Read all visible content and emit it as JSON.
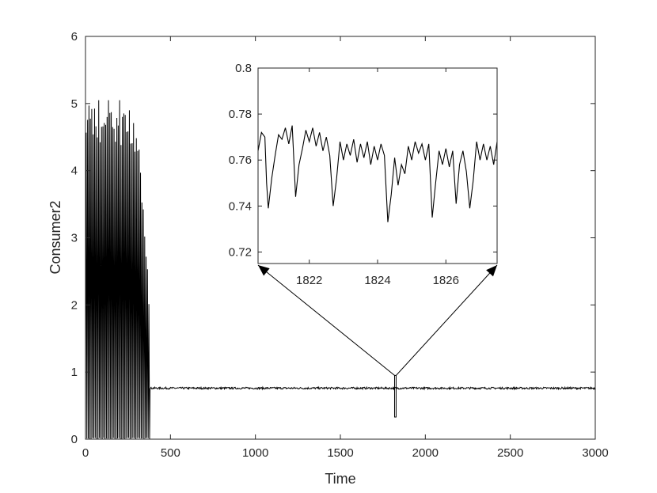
{
  "chart_data": [
    {
      "type": "line",
      "role": "main",
      "xlabel": "Time",
      "ylabel": "Consumer2",
      "xlim": [
        0,
        3000
      ],
      "ylim": [
        0,
        6
      ],
      "xticks": [
        0,
        500,
        1000,
        1500,
        2000,
        2500,
        3000
      ],
      "yticks": [
        0,
        1,
        2,
        3,
        4,
        5,
        6
      ],
      "xtick_labels": [
        "0",
        "500",
        "1000",
        "1500",
        "2000",
        "2500",
        "3000"
      ],
      "ytick_labels": [
        "0",
        "1",
        "2",
        "3",
        "4",
        "5",
        "6"
      ],
      "grid": false,
      "line_color": "#000000",
      "series": [
        {
          "description": "large oscillations between ~0 and ~5 until t≈380, then settles to ~0.76 with tiny noise",
          "segments": {
            "transient": {
              "x_range": [
                0,
                380
              ],
              "oscillation_min": 0.0,
              "oscillation_max": 5.05
            },
            "steady": {
              "x_range": [
                380,
                3000
              ],
              "mean": 0.76,
              "noise_amplitude": 0.03
            }
          }
        }
      ],
      "zoom_rectangle": {
        "x": [
          1819,
          1828
        ],
        "y": [
          0.33,
          0.95
        ]
      }
    },
    {
      "type": "line",
      "role": "inset",
      "xlim": [
        1820.5,
        1827.5
      ],
      "ylim": [
        0.715,
        0.8
      ],
      "xticks": [
        1822,
        1824,
        1826
      ],
      "yticks": [
        0.72,
        0.74,
        0.76,
        0.78,
        0.8
      ],
      "xtick_labels": [
        "1822",
        "1824",
        "1826"
      ],
      "ytick_labels": [
        "0.72",
        "0.74",
        "0.76",
        "0.78",
        "0.8"
      ],
      "line_color": "#000000",
      "series": [
        {
          "x": [
            1820.5,
            1820.6,
            1820.7,
            1820.75,
            1820.8,
            1820.9,
            1821.0,
            1821.1,
            1821.2,
            1821.3,
            1821.4,
            1821.5,
            1821.6,
            1821.7,
            1821.8,
            1821.9,
            1822.0,
            1822.1,
            1822.2,
            1822.3,
            1822.4,
            1822.5,
            1822.6,
            1822.7,
            1822.8,
            1822.9,
            1823.0,
            1823.1,
            1823.2,
            1823.3,
            1823.4,
            1823.5,
            1823.6,
            1823.7,
            1823.8,
            1823.9,
            1824.0,
            1824.1,
            1824.2,
            1824.3,
            1824.4,
            1824.5,
            1824.6,
            1824.7,
            1824.8,
            1824.9,
            1825.0,
            1825.1,
            1825.2,
            1825.3,
            1825.4,
            1825.5,
            1825.6,
            1825.7,
            1825.8,
            1825.9,
            1826.0,
            1826.1,
            1826.2,
            1826.3,
            1826.4,
            1826.5,
            1826.6,
            1826.7,
            1826.8,
            1826.9,
            1827.0,
            1827.1,
            1827.2,
            1827.3,
            1827.4,
            1827.5
          ],
          "y": [
            0.764,
            0.772,
            0.77,
            0.75,
            0.739,
            0.752,
            0.762,
            0.771,
            0.769,
            0.774,
            0.767,
            0.775,
            0.744,
            0.758,
            0.765,
            0.773,
            0.768,
            0.774,
            0.766,
            0.772,
            0.764,
            0.77,
            0.762,
            0.74,
            0.752,
            0.768,
            0.76,
            0.767,
            0.762,
            0.769,
            0.759,
            0.767,
            0.761,
            0.768,
            0.758,
            0.766,
            0.76,
            0.767,
            0.762,
            0.733,
            0.745,
            0.761,
            0.749,
            0.758,
            0.754,
            0.766,
            0.76,
            0.768,
            0.763,
            0.767,
            0.76,
            0.767,
            0.735,
            0.75,
            0.764,
            0.758,
            0.765,
            0.757,
            0.764,
            0.741,
            0.758,
            0.764,
            0.755,
            0.739,
            0.751,
            0.768,
            0.76,
            0.767,
            0.76,
            0.766,
            0.758,
            0.768
          ]
        }
      ]
    }
  ]
}
